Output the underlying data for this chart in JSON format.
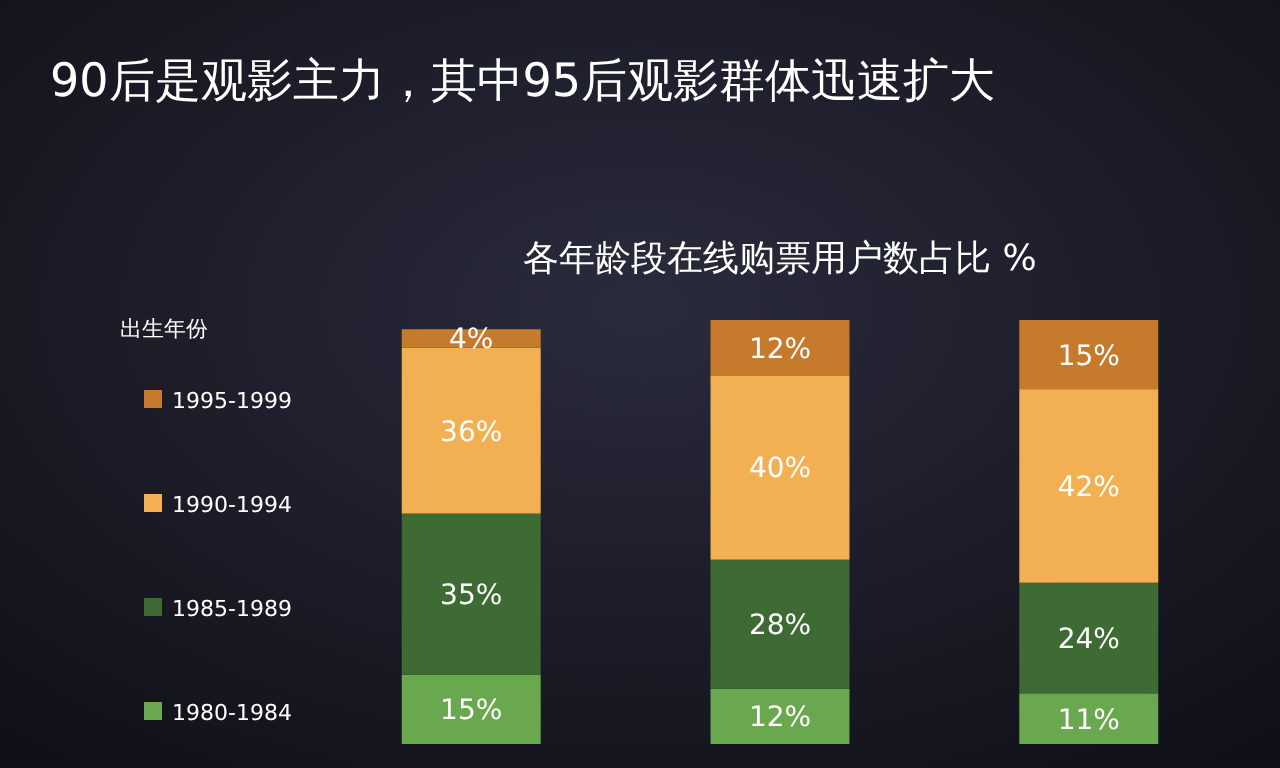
{
  "chart_data": {
    "type": "bar",
    "title": "90后是观影主力，其中95后观影群体迅速扩大",
    "subtitle": "各年龄段在线购票用户数占比 %",
    "legend_title": "出生年份",
    "categories": [
      null,
      null,
      null
    ],
    "stacked": true,
    "legend": "left",
    "series": [
      {
        "name": "1980-1984",
        "color": "#6aa84f",
        "values": [
          15,
          12,
          11
        ],
        "value_labels": [
          "15%",
          "12%",
          "11%"
        ]
      },
      {
        "name": "1985-1989",
        "color": "#3e6a33",
        "values": [
          35,
          28,
          24
        ],
        "value_labels": [
          "35%",
          "28%",
          "24%"
        ]
      },
      {
        "name": "1990-1994",
        "color": "#f3b052",
        "values": [
          36,
          40,
          42
        ],
        "value_labels": [
          "36%",
          "40%",
          "42%"
        ]
      },
      {
        "name": "1995-1999",
        "color": "#c57a2c",
        "values": [
          4,
          12,
          15
        ],
        "value_labels": [
          "4%",
          "12%",
          "15%"
        ]
      }
    ]
  }
}
